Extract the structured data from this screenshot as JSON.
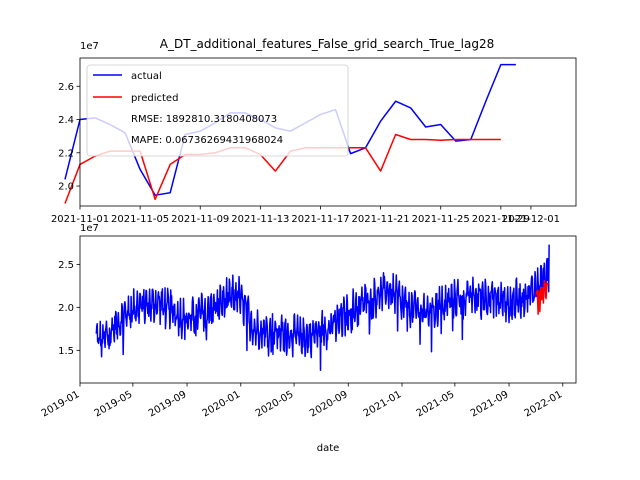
{
  "chart_data": [
    {
      "type": "line",
      "title": "A_DT_additional_features_False_grid_search_True_lag28",
      "xlabel": "",
      "ylabel": "",
      "y_offset_label": "1e7",
      "xlim": [
        0,
        33
      ],
      "ylim": [
        1.88,
        2.77
      ],
      "x_ticks": [
        {
          "x": 0,
          "label": "2021-11-01"
        },
        {
          "x": 4,
          "label": "2021-11-05"
        },
        {
          "x": 8,
          "label": "2021-11-09"
        },
        {
          "x": 12,
          "label": "2021-11-13"
        },
        {
          "x": 16,
          "label": "2021-11-17"
        },
        {
          "x": 20,
          "label": "2021-11-21"
        },
        {
          "x": 24,
          "label": "2021-11-25"
        },
        {
          "x": 28,
          "label": "2021-11-29"
        },
        {
          "x": 30,
          "label": "2021-12-01"
        }
      ],
      "y_ticks": [
        {
          "y": 2.0,
          "label": "2.0"
        },
        {
          "y": 2.2,
          "label": "2.2"
        },
        {
          "y": 2.4,
          "label": "2.4"
        },
        {
          "y": 2.6,
          "label": "2.6"
        }
      ],
      "legend": {
        "position": "top-left",
        "items": [
          {
            "name": "actual",
            "color": "#0000ff"
          },
          {
            "name": "predicted",
            "color": "#ff0000"
          }
        ],
        "notes": [
          "RMSE: 1892810.3180408073",
          "MAPE: 0.06736269431968024"
        ]
      },
      "series": [
        {
          "name": "actual",
          "color": "#0000ff",
          "x": [
            -1,
            0,
            1,
            2,
            3,
            4,
            5,
            6,
            7,
            8,
            9,
            10,
            11,
            12,
            13,
            14,
            15,
            16,
            17,
            18,
            19,
            20,
            21,
            22,
            23,
            24,
            25,
            26,
            27,
            28,
            29
          ],
          "y": [
            2.04,
            2.4,
            2.41,
            2.37,
            2.32,
            2.1,
            1.945,
            1.96,
            2.31,
            2.33,
            2.38,
            2.44,
            2.44,
            2.4,
            2.35,
            2.33,
            2.38,
            2.43,
            2.46,
            2.195,
            2.23,
            2.39,
            2.51,
            2.47,
            2.355,
            2.37,
            2.27,
            2.28,
            2.51,
            2.73,
            2.73
          ]
        },
        {
          "name": "predicted",
          "color": "#ff0000",
          "x": [
            -1,
            0,
            1,
            2,
            3,
            4,
            5,
            6,
            7,
            8,
            9,
            10,
            11,
            12,
            13,
            14,
            15,
            16,
            17,
            18,
            19,
            20,
            21,
            22,
            23,
            24,
            25,
            26,
            27,
            28
          ],
          "y": [
            1.895,
            2.13,
            2.18,
            2.21,
            2.21,
            2.21,
            1.92,
            2.13,
            2.19,
            2.19,
            2.2,
            2.23,
            2.23,
            2.19,
            2.09,
            2.21,
            2.23,
            2.23,
            2.23,
            2.23,
            2.23,
            2.09,
            2.31,
            2.28,
            2.28,
            2.275,
            2.28,
            2.28,
            2.28,
            2.28
          ]
        }
      ]
    },
    {
      "type": "line",
      "title": "",
      "xlabel": "date",
      "ylabel": "",
      "y_offset_label": "1e7",
      "xlim": [
        "2019-01-01",
        "2022-01-31"
      ],
      "ylim": [
        1.12,
        2.83
      ],
      "x_ticks": [
        {
          "x": "2019-01-01",
          "label": "2019-01"
        },
        {
          "x": "2019-05-01",
          "label": "2019-05"
        },
        {
          "x": "2019-09-01",
          "label": "2019-09"
        },
        {
          "x": "2020-01-01",
          "label": "2020-01"
        },
        {
          "x": "2020-05-01",
          "label": "2020-05"
        },
        {
          "x": "2020-09-01",
          "label": "2020-09"
        },
        {
          "x": "2021-01-01",
          "label": "2021-01"
        },
        {
          "x": "2021-05-01",
          "label": "2021-05"
        },
        {
          "x": "2021-09-01",
          "label": "2021-09"
        },
        {
          "x": "2022-01-01",
          "label": "2022-01"
        }
      ],
      "y_ticks": [
        {
          "y": 1.5,
          "label": "1.5"
        },
        {
          "y": 2.0,
          "label": "2.0"
        },
        {
          "y": 2.5,
          "label": "2.5"
        }
      ],
      "series": [
        {
          "name": "actual",
          "color": "#0000ff",
          "x_start": "2019-02-07",
          "x_end": "2021-12-01",
          "trend": {
            "x": [
              "2019-02-07",
              "2019-02-20",
              "2019-03-15",
              "2019-05-01",
              "2019-07-01",
              "2019-09-01",
              "2019-11-01",
              "2019-12-25",
              "2020-02-01",
              "2020-04-01",
              "2020-06-01",
              "2020-08-01",
              "2020-10-01",
              "2020-12-01",
              "2021-01-15",
              "2021-03-01",
              "2021-05-01",
              "2021-07-01",
              "2021-09-01",
              "2021-10-15",
              "2021-11-15",
              "2021-12-01"
            ],
            "y": [
              1.65,
              1.6,
              1.75,
              2.0,
              2.05,
              1.85,
              2.02,
              2.15,
              1.75,
              1.7,
              1.65,
              1.8,
              2.05,
              2.2,
              2.0,
              1.95,
              2.1,
              2.15,
              2.05,
              2.15,
              2.3,
              2.4
            ]
          },
          "noise_amplitude": 0.2
        },
        {
          "name": "predicted",
          "color": "#ff0000",
          "x": [
            "2021-11-01",
            "2021-11-04",
            "2021-11-06",
            "2021-11-08",
            "2021-11-10",
            "2021-11-12",
            "2021-11-14",
            "2021-11-16",
            "2021-11-18",
            "2021-11-20",
            "2021-11-22",
            "2021-11-24",
            "2021-11-26",
            "2021-11-28",
            "2021-11-30"
          ],
          "y": [
            2.15,
            2.2,
            1.92,
            2.19,
            1.95,
            2.23,
            2.09,
            2.23,
            2.05,
            2.31,
            2.28,
            2.1,
            2.28,
            2.27,
            2.28
          ]
        }
      ]
    }
  ]
}
